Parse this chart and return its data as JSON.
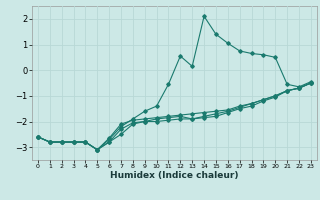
{
  "xlabel": "Humidex (Indice chaleur)",
  "ylabel": "",
  "xlim": [
    -0.5,
    23.5
  ],
  "ylim": [
    -3.5,
    2.5
  ],
  "yticks": [
    -3,
    -2,
    -1,
    0,
    1,
    2
  ],
  "xticks": [
    0,
    1,
    2,
    3,
    4,
    5,
    6,
    7,
    8,
    9,
    10,
    11,
    12,
    13,
    14,
    15,
    16,
    17,
    18,
    19,
    20,
    21,
    22,
    23
  ],
  "bg_color": "#cce8e6",
  "grid_color": "#b8d8d6",
  "line_color": "#1a7a6e",
  "lines": [
    {
      "x": [
        0,
        1,
        2,
        3,
        4,
        5,
        6,
        7,
        8,
        9,
        10,
        11,
        12,
        13,
        14,
        15,
        16,
        17,
        18,
        19,
        20,
        21,
        22,
        23
      ],
      "y": [
        -2.6,
        -2.8,
        -2.8,
        -2.8,
        -2.8,
        -3.1,
        -2.8,
        -2.5,
        -2.1,
        -2.0,
        -1.9,
        -1.85,
        -1.8,
        -1.9,
        -1.8,
        -1.7,
        -1.6,
        -1.45,
        -1.3,
        -1.15,
        -1.0,
        -0.8,
        -0.7,
        -0.5
      ]
    },
    {
      "x": [
        0,
        1,
        2,
        3,
        4,
        5,
        6,
        7,
        8,
        9,
        10,
        11,
        12,
        13,
        14,
        15,
        16,
        17,
        18,
        19,
        20,
        21,
        22,
        23
      ],
      "y": [
        -2.6,
        -2.8,
        -2.8,
        -2.8,
        -2.8,
        -3.1,
        -2.7,
        -2.2,
        -1.9,
        -1.6,
        -1.4,
        -0.55,
        0.55,
        0.15,
        2.1,
        1.4,
        1.05,
        0.75,
        0.65,
        0.6,
        0.5,
        -0.55,
        -0.65,
        -0.45
      ]
    },
    {
      "x": [
        0,
        1,
        2,
        3,
        4,
        5,
        6,
        7,
        8,
        9,
        10,
        11,
        12,
        13,
        14,
        15,
        16,
        17,
        18,
        19,
        20,
        21,
        22,
        23
      ],
      "y": [
        -2.6,
        -2.8,
        -2.8,
        -2.8,
        -2.8,
        -3.1,
        -2.8,
        -2.3,
        -2.05,
        -2.0,
        -2.0,
        -1.95,
        -1.9,
        -1.9,
        -1.85,
        -1.8,
        -1.65,
        -1.5,
        -1.4,
        -1.2,
        -1.05,
        -0.8,
        -0.7,
        -0.5
      ]
    },
    {
      "x": [
        0,
        1,
        2,
        3,
        4,
        5,
        6,
        7,
        8,
        9,
        10,
        11,
        12,
        13,
        14,
        15,
        16,
        17,
        18,
        19,
        20,
        21,
        22,
        23
      ],
      "y": [
        -2.6,
        -2.8,
        -2.8,
        -2.8,
        -2.8,
        -3.1,
        -2.65,
        -2.1,
        -1.95,
        -1.9,
        -1.85,
        -1.8,
        -1.75,
        -1.7,
        -1.65,
        -1.6,
        -1.55,
        -1.4,
        -1.3,
        -1.15,
        -1.0,
        -0.8,
        -0.7,
        -0.5
      ]
    }
  ]
}
